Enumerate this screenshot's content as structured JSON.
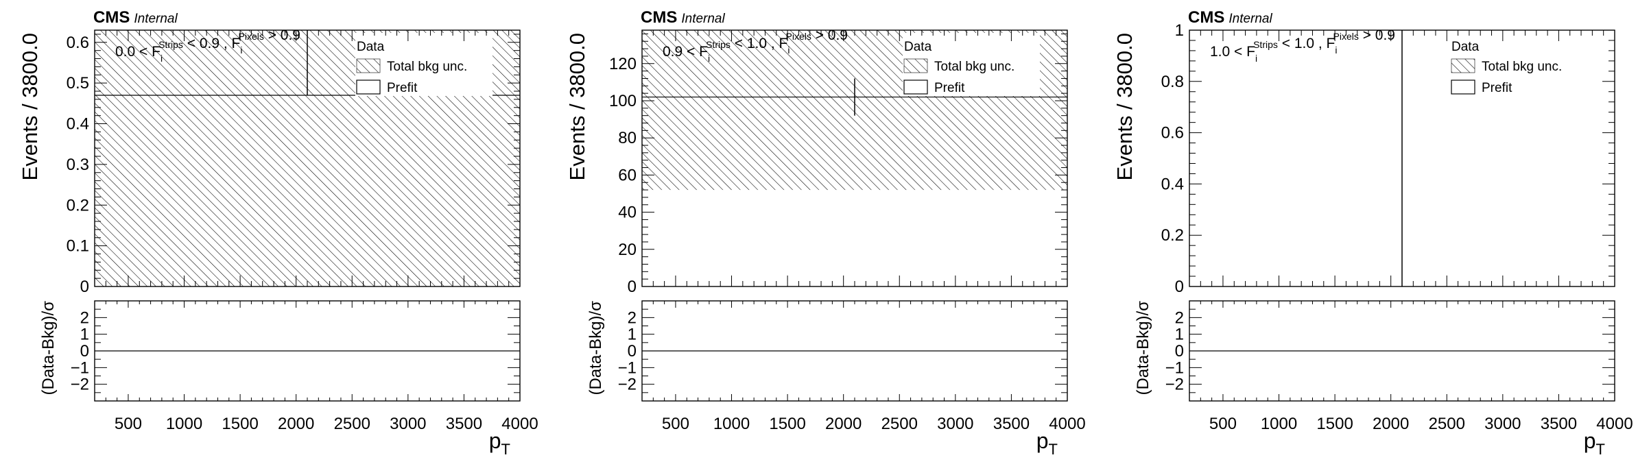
{
  "experiment": {
    "name": "CMS",
    "status": "Internal"
  },
  "legend": {
    "data_label": "Data",
    "unc_label": "Total bkg unc.",
    "prefit_label": "Prefit"
  },
  "colors": {
    "hatch": "#000000",
    "frame": "#000000",
    "background": "#ffffff"
  },
  "chart_data": [
    {
      "type": "bar",
      "ylabel": "Events / 3800.0",
      "xlabel": "p",
      "xlabel_sub": "T",
      "region": {
        "lo": "0.0",
        "mid": "0.9",
        "hi": "0.9"
      },
      "xlim": [
        200,
        4000
      ],
      "ylim": [
        0,
        0.63
      ],
      "x_ticks": [
        500,
        1000,
        1500,
        2000,
        2500,
        3000,
        3500,
        4000
      ],
      "y_ticks": [
        0,
        0.1,
        0.2,
        0.3,
        0.4,
        0.5,
        0.6
      ],
      "y_tick_labels": [
        "0",
        "0.1",
        "0.2",
        "0.3",
        "0.4",
        "0.5",
        "0.6"
      ],
      "prefit": 0.47,
      "unc_band": [
        0,
        0.63
      ],
      "data_point": {
        "x": 2100,
        "y": 0.47,
        "yerr_up": 0.25,
        "yerr_down": 0.0
      },
      "ratio": {
        "ylabel": "(Data-Bkg)/σ",
        "ylim": [
          -3,
          3
        ],
        "y_ticks": [
          2,
          1,
          0,
          -1,
          -2
        ],
        "y_tick_labels": [
          "2",
          "1",
          "0",
          "−1",
          "−2"
        ]
      }
    },
    {
      "type": "bar",
      "ylabel": "Events / 3800.0",
      "xlabel": "p",
      "xlabel_sub": "T",
      "region": {
        "lo": "0.9",
        "mid": "1.0",
        "hi": "0.9"
      },
      "xlim": [
        200,
        4000
      ],
      "ylim": [
        0,
        138
      ],
      "x_ticks": [
        500,
        1000,
        1500,
        2000,
        2500,
        3000,
        3500,
        4000
      ],
      "y_ticks": [
        0,
        20,
        40,
        60,
        80,
        100,
        120
      ],
      "y_tick_labels": [
        "0",
        "20",
        "40",
        "60",
        "80",
        "100",
        "120"
      ],
      "prefit": 102,
      "unc_band": [
        52,
        138
      ],
      "data_point": {
        "x": 2100,
        "y": 102,
        "yerr_up": 10,
        "yerr_down": 10
      },
      "ratio": {
        "ylabel": "(Data-Bkg)/σ",
        "ylim": [
          -3,
          3
        ],
        "y_ticks": [
          2,
          1,
          0,
          -1,
          -2
        ],
        "y_tick_labels": [
          "2",
          "1",
          "0",
          "−1",
          "−2"
        ]
      }
    },
    {
      "type": "bar",
      "ylabel": "Events / 3800.0",
      "xlabel": "p",
      "xlabel_sub": "T",
      "region": {
        "lo": "1.0",
        "mid": "1.0",
        "hi": "0.9"
      },
      "xlim": [
        200,
        4000
      ],
      "ylim": [
        0,
        1
      ],
      "x_ticks": [
        500,
        1000,
        1500,
        2000,
        2500,
        3000,
        3500,
        4000
      ],
      "y_ticks": [
        0,
        0.2,
        0.4,
        0.6,
        0.8,
        1
      ],
      "y_tick_labels": [
        "0",
        "0.2",
        "0.4",
        "0.6",
        "0.8",
        "1"
      ],
      "prefit": 0,
      "unc_band": [
        0,
        0
      ],
      "data_point": {
        "x": 2100,
        "y": 0,
        "yerr_up": 1.0,
        "yerr_down": 0
      },
      "ratio": {
        "ylabel": "(Data-Bkg)/σ",
        "ylim": [
          -3,
          3
        ],
        "y_ticks": [
          2,
          1,
          0,
          -1,
          -2
        ],
        "y_tick_labels": [
          "2",
          "1",
          "0",
          "−1",
          "−2"
        ]
      }
    }
  ]
}
